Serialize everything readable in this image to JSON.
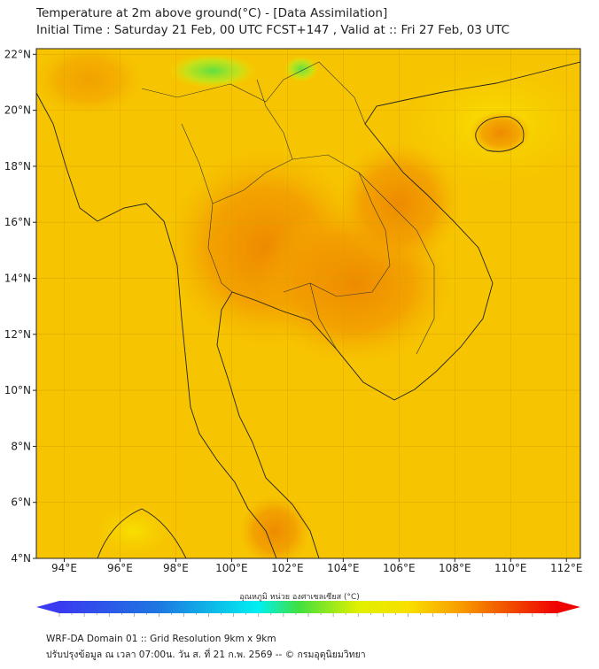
{
  "header": {
    "title": "Temperature at 2m above ground(°C) - [Data Assimilation]",
    "subtitle": "Initial Time : Saturday 21 Feb, 00 UTC FCST+147 , Valid at :: Fri 27 Feb, 03 UTC"
  },
  "map": {
    "lon_range": [
      93,
      112.5
    ],
    "lat_range": [
      4,
      22.2
    ],
    "lon_ticks": [
      "94°E",
      "96°E",
      "98°E",
      "100°E",
      "102°E",
      "104°E",
      "106°E",
      "108°E",
      "110°E",
      "112°E"
    ],
    "lat_ticks": [
      "22°N",
      "20°N",
      "18°N",
      "16°N",
      "14°N",
      "12°N",
      "10°N",
      "8°N",
      "6°N",
      "4°N"
    ]
  },
  "colorbar": {
    "label": "อุณหภูมิ หน่วย องศาเซลเซียส (°C)",
    "min": 0,
    "max": 40,
    "ticks": [
      "0",
      "2",
      "4",
      "6",
      "8",
      "10",
      "12",
      "14",
      "16",
      "18",
      "20",
      "22",
      "24",
      "26",
      "28",
      "30",
      "32",
      "34",
      "36",
      "38",
      "40"
    ],
    "colors": [
      "#3a3af0",
      "#1e78e0",
      "#00c8f0",
      "#00f0e0",
      "#40e040",
      "#a0f000",
      "#f0f000",
      "#f8d000",
      "#f8a000",
      "#f06000",
      "#f00000"
    ]
  },
  "footer": {
    "line1": "WRF-DA Domain 01 :: Grid Resolution 9km x 9km",
    "line2": "ปรับปรุงข้อมูล ณ เวลา 07:00น. วัน ส. ที่ 21 ก.พ. 2569 -- © กรมอุตุนิยมวิทยา"
  }
}
